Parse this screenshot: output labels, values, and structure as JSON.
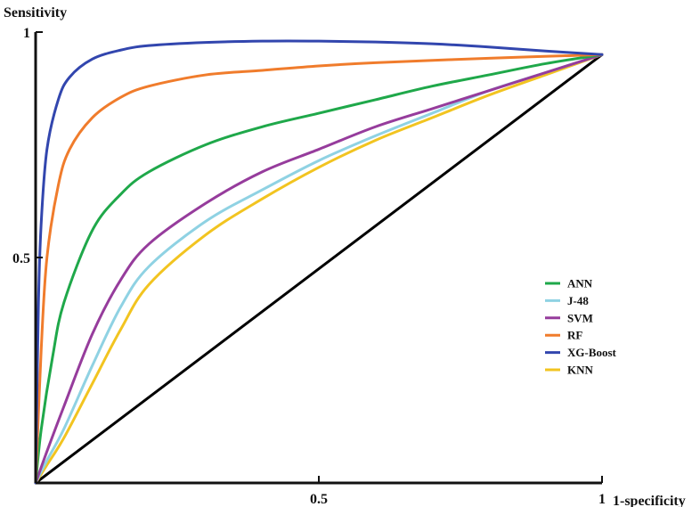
{
  "chart_data": {
    "type": "line",
    "title": "",
    "xlabel": "1-specificity",
    "ylabel": "Sensitivity",
    "xlim": [
      0,
      1
    ],
    "ylim": [
      0,
      1
    ],
    "x_ticks": [
      {
        "value": 0.5,
        "label": "0.5"
      },
      {
        "value": 1,
        "label": "1"
      }
    ],
    "y_ticks": [
      {
        "value": 0.5,
        "label": "0.5"
      },
      {
        "value": 1,
        "label": "1"
      }
    ],
    "grid": false,
    "legend_position": "center-right",
    "reference_line": {
      "x": [
        0,
        1
      ],
      "y": [
        0,
        0.95
      ],
      "color": "#000000"
    },
    "series": [
      {
        "name": "ANN",
        "color": "#1fa84a",
        "x": [
          0,
          0.01,
          0.03,
          0.05,
          0.1,
          0.15,
          0.2,
          0.3,
          0.4,
          0.5,
          0.6,
          0.7,
          0.8,
          0.9,
          1.0
        ],
        "y": [
          0,
          0.12,
          0.28,
          0.4,
          0.56,
          0.64,
          0.69,
          0.75,
          0.79,
          0.82,
          0.85,
          0.88,
          0.905,
          0.93,
          0.95
        ]
      },
      {
        "name": "J-48",
        "color": "#8fd2e3",
        "x": [
          0,
          0.02,
          0.05,
          0.1,
          0.15,
          0.2,
          0.3,
          0.4,
          0.5,
          0.6,
          0.7,
          0.8,
          0.9,
          1.0
        ],
        "y": [
          0,
          0.05,
          0.12,
          0.26,
          0.39,
          0.48,
          0.58,
          0.65,
          0.715,
          0.77,
          0.82,
          0.87,
          0.91,
          0.95
        ]
      },
      {
        "name": "SVM",
        "color": "#963c9c",
        "x": [
          0,
          0.02,
          0.05,
          0.1,
          0.15,
          0.2,
          0.3,
          0.4,
          0.5,
          0.6,
          0.7,
          0.8,
          0.9,
          1.0
        ],
        "y": [
          0,
          0.07,
          0.17,
          0.33,
          0.45,
          0.53,
          0.62,
          0.69,
          0.74,
          0.79,
          0.83,
          0.87,
          0.91,
          0.95
        ]
      },
      {
        "name": "RF",
        "color": "#f07c2c",
        "x": [
          0,
          0.01,
          0.02,
          0.04,
          0.06,
          0.1,
          0.15,
          0.2,
          0.3,
          0.4,
          0.5,
          0.6,
          0.8,
          1.0
        ],
        "y": [
          0,
          0.3,
          0.5,
          0.66,
          0.74,
          0.81,
          0.855,
          0.88,
          0.905,
          0.915,
          0.925,
          0.932,
          0.942,
          0.95
        ]
      },
      {
        "name": "XG-Boost",
        "color": "#3246ae",
        "x": [
          0,
          0.005,
          0.01,
          0.02,
          0.04,
          0.06,
          0.1,
          0.15,
          0.2,
          0.3,
          0.4,
          0.5,
          0.6,
          0.7,
          0.8,
          0.9,
          1.0
        ],
        "y": [
          0,
          0.4,
          0.58,
          0.74,
          0.85,
          0.9,
          0.94,
          0.96,
          0.97,
          0.977,
          0.98,
          0.98,
          0.978,
          0.974,
          0.967,
          0.958,
          0.95
        ]
      },
      {
        "name": "KNN",
        "color": "#f2c420",
        "x": [
          0,
          0.02,
          0.05,
          0.1,
          0.15,
          0.2,
          0.3,
          0.4,
          0.5,
          0.6,
          0.7,
          0.8,
          0.9,
          1.0
        ],
        "y": [
          0,
          0.04,
          0.1,
          0.22,
          0.34,
          0.44,
          0.55,
          0.63,
          0.7,
          0.76,
          0.81,
          0.86,
          0.905,
          0.95
        ]
      }
    ]
  }
}
